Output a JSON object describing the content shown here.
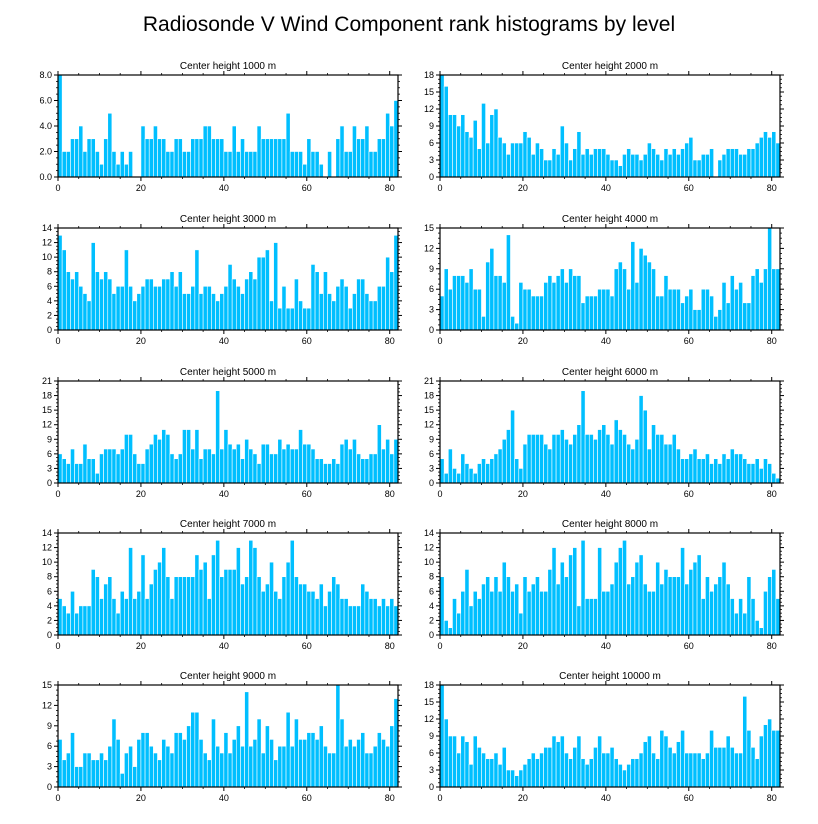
{
  "figure": {
    "title": "Radiosonde V Wind Component rank histograms by level",
    "bar_color": "#00bfff",
    "bar_edge_color": "#ffffff",
    "axis_color": "#000000"
  },
  "chart_data": [
    {
      "type": "bar",
      "title": "Center height 1000 m",
      "xlim": [
        0,
        82
      ],
      "ylim": [
        0,
        8
      ],
      "xticks": [
        0,
        20,
        40,
        60,
        80
      ],
      "xtick_labels": [
        "0",
        "20",
        "40",
        "60",
        "80"
      ],
      "yticks": [
        0,
        2,
        4,
        6,
        8
      ],
      "ytick_labels": [
        "0.0",
        "2.0",
        "4.0",
        "6.0",
        "8.0"
      ],
      "values": [
        8,
        2,
        2,
        3,
        3,
        4,
        2,
        3,
        3,
        2,
        1,
        3,
        5,
        2,
        1,
        2,
        1,
        2,
        0,
        0,
        4,
        3,
        3,
        4,
        3,
        3,
        2,
        2,
        3,
        3,
        2,
        2,
        3,
        3,
        3,
        4,
        4,
        3,
        3,
        3,
        2,
        2,
        4,
        2,
        3,
        2,
        2,
        2,
        4,
        3,
        3,
        3,
        3,
        3,
        3,
        5,
        2,
        2,
        2,
        1,
        3,
        2,
        2,
        1,
        0,
        2,
        0,
        3,
        4,
        2,
        2,
        4,
        3,
        3,
        4,
        2,
        2,
        3,
        3,
        5,
        4,
        6
      ]
    },
    {
      "type": "bar",
      "title": "Center height 2000 m",
      "xlim": [
        0,
        82
      ],
      "ylim": [
        0,
        18
      ],
      "xticks": [
        0,
        20,
        40,
        60,
        80
      ],
      "xtick_labels": [
        "0",
        "20",
        "40",
        "60",
        "80"
      ],
      "yticks": [
        0,
        3,
        6,
        9,
        12,
        15,
        18
      ],
      "ytick_labels": [
        "0",
        "3",
        "6",
        "9",
        "12",
        "15",
        "18"
      ],
      "values": [
        18,
        16,
        11,
        11,
        9,
        11,
        8,
        7,
        10,
        5,
        13,
        6,
        11,
        12,
        7,
        6,
        4,
        6,
        6,
        6,
        8,
        7,
        4,
        6,
        5,
        3,
        3,
        5,
        4,
        9,
        6,
        3,
        5,
        8,
        4,
        5,
        4,
        5,
        5,
        5,
        4,
        3,
        3,
        2,
        4,
        5,
        4,
        4,
        3,
        4,
        6,
        5,
        4,
        3,
        5,
        4,
        5,
        4,
        5,
        6,
        7,
        3,
        3,
        4,
        4,
        5,
        0,
        3,
        4,
        5,
        5,
        5,
        4,
        4,
        5,
        5,
        6,
        7,
        8,
        7,
        8,
        6
      ]
    },
    {
      "type": "bar",
      "title": "Center height 3000 m",
      "xlim": [
        0,
        82
      ],
      "ylim": [
        0,
        14
      ],
      "xticks": [
        0,
        20,
        40,
        60,
        80
      ],
      "xtick_labels": [
        "0",
        "20",
        "40",
        "60",
        "80"
      ],
      "yticks": [
        0,
        2,
        4,
        6,
        8,
        10,
        12,
        14
      ],
      "ytick_labels": [
        "0",
        "2",
        "4",
        "6",
        "8",
        "10",
        "12",
        "14"
      ],
      "values": [
        13,
        11,
        8,
        7,
        8,
        6,
        5,
        4,
        12,
        8,
        7,
        8,
        7,
        5,
        6,
        6,
        11,
        6,
        4,
        5,
        6,
        7,
        7,
        6,
        6,
        7,
        7,
        8,
        6,
        8,
        5,
        5,
        6,
        11,
        5,
        6,
        6,
        5,
        4,
        5,
        6,
        9,
        7,
        6,
        5,
        7,
        8,
        7,
        10,
        10,
        11,
        4,
        12,
        3,
        6,
        3,
        3,
        7,
        4,
        3,
        3,
        9,
        8,
        5,
        8,
        5,
        4,
        6,
        7,
        6,
        3,
        5,
        7,
        7,
        5,
        4,
        4,
        6,
        6,
        10,
        8,
        13
      ]
    },
    {
      "type": "bar",
      "title": "Center height 4000 m",
      "xlim": [
        0,
        82
      ],
      "ylim": [
        0,
        15
      ],
      "xticks": [
        0,
        20,
        40,
        60,
        80
      ],
      "xtick_labels": [
        "0",
        "20",
        "40",
        "60",
        "80"
      ],
      "yticks": [
        0,
        3,
        6,
        9,
        12,
        15
      ],
      "ytick_labels": [
        "0",
        "3",
        "6",
        "9",
        "12",
        "15"
      ],
      "values": [
        5,
        9,
        6,
        8,
        8,
        8,
        7,
        9,
        6,
        6,
        2,
        10,
        12,
        8,
        8,
        7,
        14,
        2,
        1,
        7,
        6,
        6,
        5,
        5,
        5,
        7,
        8,
        7,
        8,
        9,
        7,
        9,
        8,
        8,
        4,
        5,
        5,
        5,
        6,
        6,
        6,
        5,
        9,
        10,
        9,
        6,
        13,
        7,
        12,
        11,
        10,
        9,
        5,
        5,
        8,
        6,
        6,
        6,
        4,
        5,
        6,
        3,
        3,
        6,
        6,
        5,
        2,
        3,
        7,
        4,
        8,
        6,
        7,
        4,
        4,
        8,
        9,
        7,
        9,
        15,
        9,
        9
      ]
    },
    {
      "type": "bar",
      "title": "Center height 5000 m",
      "xlim": [
        0,
        82
      ],
      "ylim": [
        0,
        21
      ],
      "xticks": [
        0,
        20,
        40,
        60,
        80
      ],
      "xtick_labels": [
        "0",
        "20",
        "40",
        "60",
        "80"
      ],
      "yticks": [
        0,
        3,
        6,
        9,
        12,
        15,
        18,
        21
      ],
      "ytick_labels": [
        "0",
        "3",
        "6",
        "9",
        "12",
        "15",
        "18",
        "21"
      ],
      "values": [
        6,
        5,
        4,
        7,
        4,
        4,
        8,
        5,
        5,
        2,
        6,
        7,
        7,
        7,
        6,
        7,
        10,
        10,
        6,
        4,
        4,
        7,
        8,
        10,
        9,
        11,
        10,
        6,
        5,
        6,
        11,
        11,
        7,
        11,
        5,
        7,
        7,
        6,
        19,
        7,
        11,
        8,
        7,
        8,
        5,
        9,
        7,
        6,
        4,
        8,
        8,
        6,
        6,
        9,
        7,
        8,
        7,
        7,
        11,
        8,
        8,
        7,
        5,
        5,
        4,
        4,
        5,
        4,
        8,
        9,
        7,
        9,
        6,
        5,
        5,
        6,
        6,
        12,
        7,
        9,
        6,
        9
      ]
    },
    {
      "type": "bar",
      "title": "Center height 6000 m",
      "xlim": [
        0,
        82
      ],
      "ylim": [
        0,
        21
      ],
      "xticks": [
        0,
        20,
        40,
        60,
        80
      ],
      "xtick_labels": [
        "0",
        "20",
        "40",
        "60",
        "80"
      ],
      "yticks": [
        0,
        3,
        6,
        9,
        12,
        15,
        18,
        21
      ],
      "ytick_labels": [
        "0",
        "3",
        "6",
        "9",
        "12",
        "15",
        "18",
        "21"
      ],
      "values": [
        5,
        2,
        7,
        3,
        2,
        6,
        4,
        3,
        2,
        4,
        5,
        4,
        5,
        6,
        7,
        9,
        11,
        15,
        5,
        3,
        8,
        10,
        10,
        10,
        10,
        8,
        7,
        10,
        10,
        11,
        9,
        8,
        10,
        12,
        19,
        10,
        10,
        9,
        11,
        12,
        10,
        8,
        13,
        11,
        10,
        8,
        7,
        9,
        18,
        15,
        7,
        12,
        10,
        10,
        8,
        8,
        10,
        7,
        5,
        5,
        6,
        7,
        5,
        5,
        6,
        4,
        5,
        4,
        6,
        5,
        7,
        6,
        6,
        5,
        4,
        4,
        5,
        3,
        5,
        4,
        2,
        1
      ]
    },
    {
      "type": "bar",
      "title": "Center height 7000 m",
      "xlim": [
        0,
        82
      ],
      "ylim": [
        0,
        14
      ],
      "xticks": [
        0,
        20,
        40,
        60,
        80
      ],
      "xtick_labels": [
        "0",
        "20",
        "40",
        "60",
        "80"
      ],
      "yticks": [
        0,
        2,
        4,
        6,
        8,
        10,
        12,
        14
      ],
      "ytick_labels": [
        "0",
        "2",
        "4",
        "6",
        "8",
        "10",
        "12",
        "14"
      ],
      "values": [
        5,
        4,
        3,
        6,
        3,
        4,
        4,
        4,
        9,
        8,
        5,
        7,
        8,
        5,
        3,
        6,
        5,
        12,
        5,
        6,
        11,
        5,
        7,
        9,
        10,
        12,
        8,
        5,
        8,
        8,
        8,
        8,
        8,
        11,
        9,
        10,
        5,
        11,
        13,
        8,
        9,
        9,
        9,
        12,
        7,
        8,
        13,
        12,
        8,
        6,
        7,
        10,
        6,
        5,
        8,
        10,
        13,
        8,
        7,
        7,
        6,
        6,
        5,
        7,
        4,
        6,
        8,
        7,
        5,
        5,
        4,
        4,
        4,
        7,
        6,
        5,
        5,
        4,
        5,
        4,
        5,
        4
      ]
    },
    {
      "type": "bar",
      "title": "Center height 8000 m",
      "xlim": [
        0,
        82
      ],
      "ylim": [
        0,
        14
      ],
      "xticks": [
        0,
        20,
        40,
        60,
        80
      ],
      "xtick_labels": [
        "0",
        "20",
        "40",
        "60",
        "80"
      ],
      "yticks": [
        0,
        2,
        4,
        6,
        8,
        10,
        12,
        14
      ],
      "ytick_labels": [
        "0",
        "2",
        "4",
        "6",
        "8",
        "10",
        "12",
        "14"
      ],
      "values": [
        8,
        2,
        1,
        5,
        3,
        6,
        9,
        4,
        6,
        5,
        7,
        8,
        6,
        8,
        6,
        10,
        8,
        6,
        7,
        3,
        8,
        6,
        7,
        8,
        6,
        6,
        9,
        12,
        7,
        10,
        8,
        11,
        12,
        4,
        13,
        5,
        5,
        5,
        12,
        6,
        6,
        7,
        10,
        12,
        13,
        7,
        8,
        10,
        11,
        7,
        6,
        6,
        10,
        7,
        9,
        8,
        8,
        8,
        12,
        7,
        9,
        10,
        11,
        5,
        8,
        6,
        7,
        8,
        10,
        7,
        5,
        3,
        5,
        3,
        8,
        5,
        2,
        1,
        6,
        8,
        9,
        5
      ]
    },
    {
      "type": "bar",
      "title": "Center height 9000 m",
      "xlim": [
        0,
        82
      ],
      "ylim": [
        0,
        15
      ],
      "xticks": [
        0,
        20,
        40,
        60,
        80
      ],
      "xtick_labels": [
        "0",
        "20",
        "40",
        "60",
        "80"
      ],
      "yticks": [
        0,
        3,
        6,
        9,
        12,
        15
      ],
      "ytick_labels": [
        "0",
        "3",
        "6",
        "9",
        "12",
        "15"
      ],
      "values": [
        7,
        4,
        5,
        8,
        3,
        3,
        5,
        5,
        4,
        4,
        5,
        4,
        6,
        10,
        7,
        2,
        5,
        6,
        3,
        7,
        8,
        8,
        6,
        5,
        4,
        7,
        6,
        5,
        8,
        8,
        7,
        9,
        11,
        11,
        7,
        5,
        4,
        10,
        6,
        5,
        8,
        5,
        7,
        9,
        6,
        14,
        6,
        7,
        10,
        5,
        9,
        7,
        4,
        6,
        6,
        11,
        6,
        10,
        7,
        7,
        8,
        8,
        7,
        9,
        6,
        5,
        5,
        15,
        10,
        6,
        7,
        6,
        7,
        8,
        5,
        5,
        6,
        8,
        7,
        6,
        9,
        13
      ]
    },
    {
      "type": "bar",
      "title": "Center height 10000 m",
      "xlim": [
        0,
        82
      ],
      "ylim": [
        0,
        18
      ],
      "xticks": [
        0,
        20,
        40,
        60,
        80
      ],
      "xtick_labels": [
        "0",
        "20",
        "40",
        "60",
        "80"
      ],
      "yticks": [
        0,
        3,
        6,
        9,
        12,
        15,
        18
      ],
      "ytick_labels": [
        "0",
        "3",
        "6",
        "9",
        "12",
        "15",
        "18"
      ],
      "values": [
        18,
        12,
        9,
        9,
        6,
        9,
        8,
        4,
        9,
        7,
        6,
        5,
        5,
        6,
        4,
        7,
        3,
        3,
        2,
        3,
        4,
        5,
        6,
        5,
        6,
        7,
        7,
        9,
        8,
        9,
        6,
        5,
        7,
        9,
        5,
        4,
        5,
        7,
        9,
        6,
        6,
        7,
        5,
        4,
        3,
        4,
        5,
        5,
        6,
        8,
        9,
        6,
        5,
        10,
        9,
        7,
        6,
        8,
        10,
        6,
        6,
        6,
        6,
        5,
        6,
        10,
        7,
        7,
        7,
        9,
        7,
        6,
        6,
        16,
        10,
        7,
        5,
        9,
        11,
        12,
        10,
        10
      ]
    }
  ]
}
